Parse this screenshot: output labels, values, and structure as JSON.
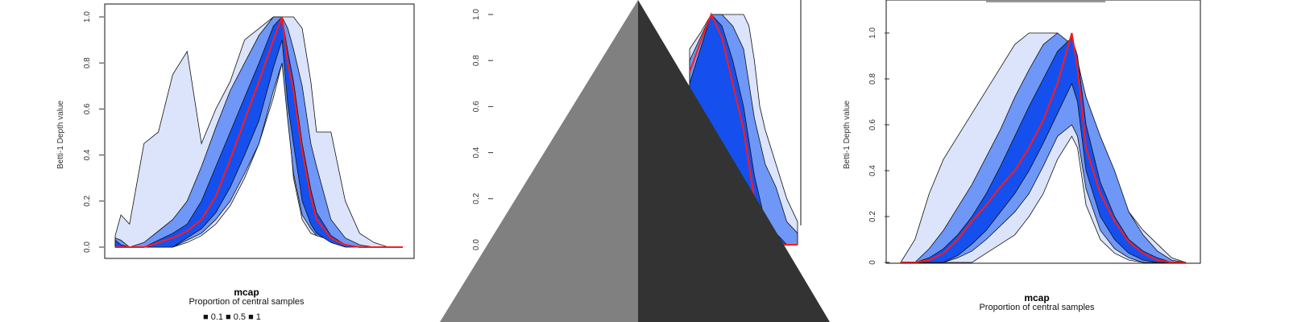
{
  "colors": {
    "band_01": "#1550ee",
    "band_05": "#6e97f7",
    "band_1": "#dbe4fb",
    "median": "#ff1a1a",
    "outline": "#111111",
    "overlay_light": "#808080",
    "overlay_dark": "#333333"
  },
  "overlay": {
    "icon": "triangle-overlay-icon"
  },
  "chart_data": [
    {
      "type": "area",
      "ylabel": "Betti-1 Depth value",
      "caption_title": "mcap",
      "caption_sub": "Proportion of central samples",
      "legend_partial": "■ 0.1  ■ 0.5  ■ 1",
      "yticks": [
        "0.0",
        "0.2",
        "0.4",
        "0.6",
        "0.8",
        "1.0"
      ],
      "ylim": [
        0,
        1
      ],
      "x": [
        0,
        0.02,
        0.05,
        0.1,
        0.15,
        0.2,
        0.25,
        0.3,
        0.35,
        0.4,
        0.45,
        0.5,
        0.55,
        0.58,
        0.6,
        0.62,
        0.65,
        0.68,
        0.7,
        0.75,
        0.8,
        0.85,
        0.9,
        0.95,
        1
      ],
      "band_1_upper": [
        0.05,
        0.14,
        0.1,
        0.45,
        0.5,
        0.75,
        0.85,
        0.45,
        0.6,
        0.72,
        0.9,
        0.95,
        1,
        1,
        1,
        1,
        0.95,
        0.72,
        0.5,
        0.5,
        0.2,
        0.06,
        0.02,
        0,
        0
      ],
      "band_1_lower": [
        0,
        0,
        0,
        0,
        0,
        0,
        0.02,
        0.05,
        0.1,
        0.18,
        0.3,
        0.45,
        0.65,
        0.8,
        0.6,
        0.3,
        0.12,
        0.06,
        0.05,
        0.04,
        0.02,
        0,
        0,
        0,
        0
      ],
      "band_05_upper": [
        0.04,
        0.03,
        0,
        0.02,
        0.07,
        0.12,
        0.2,
        0.35,
        0.52,
        0.68,
        0.8,
        0.92,
        1,
        1,
        0.95,
        0.86,
        0.7,
        0.45,
        0.35,
        0.12,
        0.04,
        0.01,
        0,
        0,
        0
      ],
      "band_05_lower": [
        0,
        0,
        0,
        0,
        0,
        0,
        0.03,
        0.06,
        0.12,
        0.2,
        0.32,
        0.45,
        0.68,
        0.8,
        0.55,
        0.32,
        0.14,
        0.08,
        0.05,
        0.03,
        0.01,
        0,
        0,
        0,
        0
      ],
      "band_01_upper": [
        0.03,
        0.01,
        0,
        0,
        0.03,
        0.06,
        0.1,
        0.2,
        0.35,
        0.5,
        0.65,
        0.8,
        0.96,
        1,
        0.85,
        0.72,
        0.45,
        0.25,
        0.15,
        0.05,
        0.01,
        0,
        0,
        0,
        0
      ],
      "band_01_lower": [
        0,
        0,
        0,
        0,
        0,
        0,
        0.04,
        0.08,
        0.15,
        0.26,
        0.4,
        0.55,
        0.78,
        0.9,
        0.62,
        0.45,
        0.2,
        0.1,
        0.06,
        0.02,
        0,
        0,
        0,
        0,
        0
      ],
      "median": [
        0,
        0,
        0,
        0,
        0.02,
        0.04,
        0.07,
        0.12,
        0.22,
        0.38,
        0.55,
        0.72,
        0.9,
        1,
        0.8,
        0.68,
        0.42,
        0.22,
        0.12,
        0.04,
        0.01,
        0,
        0,
        0,
        0
      ]
    },
    {
      "type": "area",
      "ylabel": "",
      "caption_title": "",
      "caption_sub": "",
      "legend_partial": "",
      "yticks": [
        "0.0",
        "0.2",
        "0.4",
        "0.6",
        "0.8",
        "1.0"
      ],
      "ylim": [
        0,
        1
      ],
      "x": [
        0,
        0.1,
        0.2,
        0.3,
        0.4,
        0.5,
        0.55,
        0.6,
        0.65,
        0.7,
        0.8,
        0.9,
        1
      ],
      "band_1_upper": [
        0.85,
        0.92,
        1,
        1,
        1,
        1,
        0.95,
        0.8,
        0.6,
        0.5,
        0.35,
        0.2,
        0.1
      ],
      "band_1_lower": [
        0,
        0,
        0,
        0,
        0,
        0,
        0,
        0,
        0,
        0,
        0,
        0,
        0
      ],
      "band_05_upper": [
        0.8,
        0.9,
        1,
        1,
        0.95,
        0.85,
        0.7,
        0.55,
        0.45,
        0.35,
        0.25,
        0.1,
        0.05
      ],
      "band_05_lower": [
        0,
        0,
        0,
        0,
        0,
        0,
        0,
        0,
        0,
        0,
        0,
        0,
        0
      ],
      "band_01_upper": [
        0.7,
        0.85,
        1,
        0.95,
        0.8,
        0.6,
        0.45,
        0.3,
        0.2,
        0.1,
        0.05,
        0,
        0
      ],
      "band_01_lower": [
        0,
        0,
        0,
        0,
        0,
        0,
        0,
        0,
        0,
        0,
        0,
        0,
        0
      ],
      "median": [
        0.75,
        0.88,
        1,
        0.9,
        0.7,
        0.5,
        0.35,
        0.2,
        0.1,
        0.05,
        0,
        0,
        0
      ]
    },
    {
      "type": "area",
      "ylabel": "Betti-1 Depth value",
      "caption_title": "mcap",
      "caption_sub": "Proportion of central samples",
      "legend_partial": "",
      "yticks": [
        "0",
        "0.2",
        "0.4",
        "0.6",
        "0.8",
        "1.0"
      ],
      "ylim": [
        0,
        1
      ],
      "x": [
        0,
        0.05,
        0.1,
        0.15,
        0.2,
        0.25,
        0.3,
        0.35,
        0.4,
        0.45,
        0.5,
        0.55,
        0.6,
        0.62,
        0.65,
        0.7,
        0.75,
        0.8,
        0.85,
        0.9,
        0.95,
        1
      ],
      "band_1_upper": [
        0,
        0.1,
        0.3,
        0.45,
        0.55,
        0.65,
        0.75,
        0.85,
        0.95,
        1,
        1,
        1,
        0.92,
        0.85,
        0.72,
        0.52,
        0.35,
        0.22,
        0.14,
        0.08,
        0.02,
        0
      ],
      "band_1_lower": [
        0,
        0,
        0,
        0,
        0,
        0,
        0.04,
        0.08,
        0.12,
        0.2,
        0.3,
        0.45,
        0.55,
        0.5,
        0.25,
        0.1,
        0.04,
        0.01,
        0,
        0,
        0,
        0
      ],
      "band_05_upper": [
        0,
        0,
        0.06,
        0.14,
        0.24,
        0.34,
        0.46,
        0.58,
        0.72,
        0.84,
        0.95,
        1,
        0.95,
        0.88,
        0.72,
        0.55,
        0.4,
        0.22,
        0.12,
        0.05,
        0.01,
        0
      ],
      "band_05_lower": [
        0,
        0,
        0,
        0,
        0.02,
        0.05,
        0.1,
        0.16,
        0.22,
        0.3,
        0.42,
        0.55,
        0.6,
        0.55,
        0.32,
        0.14,
        0.06,
        0.02,
        0,
        0,
        0,
        0
      ],
      "band_01_upper": [
        0,
        0,
        0.02,
        0.06,
        0.12,
        0.2,
        0.3,
        0.42,
        0.55,
        0.68,
        0.8,
        0.92,
        0.98,
        0.9,
        0.6,
        0.35,
        0.2,
        0.1,
        0.05,
        0.02,
        0,
        0
      ],
      "band_01_lower": [
        0,
        0,
        0,
        0,
        0.03,
        0.08,
        0.14,
        0.22,
        0.3,
        0.4,
        0.52,
        0.65,
        0.78,
        0.7,
        0.4,
        0.2,
        0.1,
        0.04,
        0.01,
        0,
        0,
        0
      ],
      "median": [
        0,
        0,
        0.01,
        0.04,
        0.1,
        0.18,
        0.25,
        0.33,
        0.4,
        0.5,
        0.62,
        0.78,
        1,
        0.85,
        0.5,
        0.3,
        0.18,
        0.09,
        0.04,
        0.01,
        0,
        0
      ]
    }
  ]
}
